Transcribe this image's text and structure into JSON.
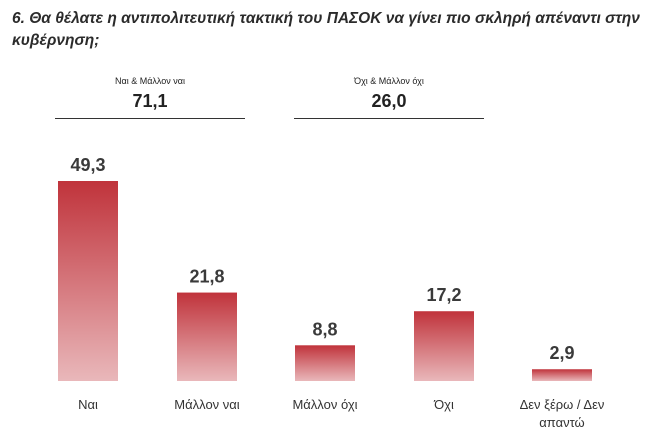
{
  "chart_data": {
    "type": "bar",
    "title": "6. Θα θέλατε η αντιπολιτευτική τακτική του ΠΑΣΟΚ να γίνει πιο σκληρή απέναντι στην κυβέρνηση;",
    "summaries": [
      {
        "label": "Ναι & Μάλλον ναι",
        "value": "71,1"
      },
      {
        "label": "Όχι & Μάλλον όχι",
        "value": "26,0"
      }
    ],
    "categories": [
      "Ναι",
      "Μάλλον ναι",
      "Μάλλον όχι",
      "Όχι",
      "Δεν ξέρω / Δεν απαντώ"
    ],
    "values": [
      49.3,
      21.8,
      8.8,
      17.2,
      2.9
    ],
    "value_labels": [
      "49,3",
      "21,8",
      "8,8",
      "17,2",
      "2,9"
    ],
    "color": "#c0333b"
  }
}
